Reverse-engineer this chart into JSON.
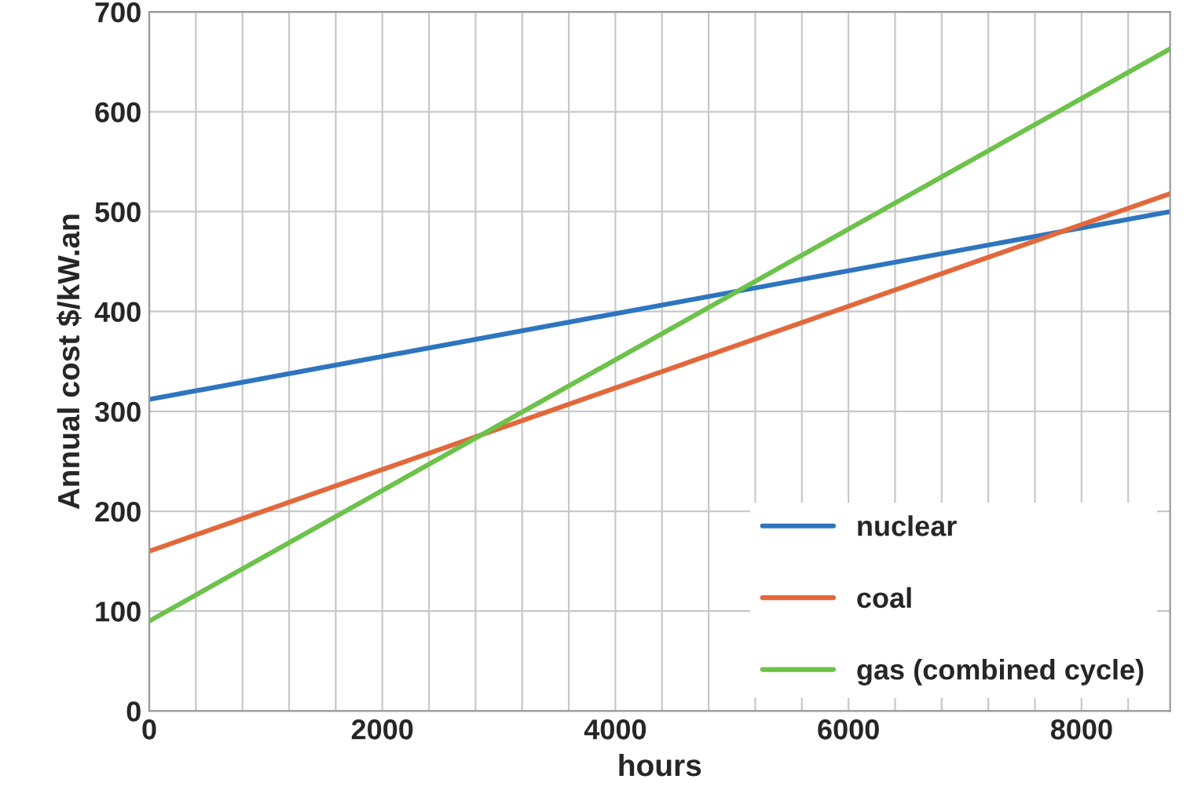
{
  "chart_data": {
    "type": "line",
    "xlabel": "hours",
    "ylabel": "Annual cost $/kW.an",
    "xlim": [
      0,
      8760
    ],
    "ylim": [
      0,
      700
    ],
    "xticks": [
      0,
      {
        "value": 400,
        "label": null
      },
      {
        "value": 800,
        "label": null
      },
      {
        "value": 1200,
        "label": null
      },
      {
        "value": 1600,
        "label": null
      },
      2000,
      {
        "value": 2400,
        "label": null
      },
      {
        "value": 2800,
        "label": null
      },
      {
        "value": 3200,
        "label": null
      },
      {
        "value": 3600,
        "label": null
      },
      4000,
      {
        "value": 4400,
        "label": null
      },
      {
        "value": 4800,
        "label": null
      },
      {
        "value": 5200,
        "label": null
      },
      {
        "value": 5600,
        "label": null
      },
      6000,
      {
        "value": 6400,
        "label": null
      },
      {
        "value": 6800,
        "label": null
      },
      {
        "value": 7200,
        "label": null
      },
      {
        "value": 7600,
        "label": null
      },
      8000,
      {
        "value": 8400,
        "label": null
      }
    ],
    "yticks": [
      0,
      100,
      200,
      300,
      400,
      500,
      600,
      700
    ],
    "x": [
      0,
      8760
    ],
    "series": [
      {
        "name": "nuclear",
        "color": "#2e75c0",
        "values": [
          312,
          500
        ]
      },
      {
        "name": "coal",
        "color": "#e2683c",
        "values": [
          160,
          518
        ]
      },
      {
        "name": "gas (combined cycle)",
        "color": "#6cc24a",
        "values": [
          90,
          663
        ]
      }
    ],
    "grid": true,
    "legend": "bottom right",
    "line_style": "solid",
    "marker": "none"
  }
}
